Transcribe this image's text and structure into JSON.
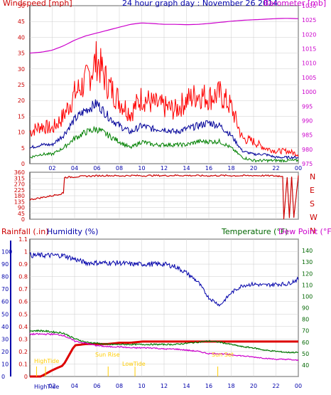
{
  "header": {
    "wind_label": "Windspeed [mph]",
    "title": "24 hour graph day : November 26 2014",
    "baro_label": "Barometer [mb]",
    "rain_label": "Rainfall (.in)",
    "humidity_label": "Humidity (%)",
    "temp_label": "Temperature (°F)",
    "dew_label": "Dew Point (°F)"
  },
  "colors": {
    "wind": "#ff0000",
    "avg_wind": "#000099",
    "wind_low": "#008000",
    "barometer": "#cc00cc",
    "direction": "#cc0000",
    "rain": "#dd0000",
    "humidity": "#0000aa",
    "temperature": "#007700",
    "dewpoint": "#cc00cc",
    "events": "#ffcc00",
    "frame": "#000000",
    "grid": "#cccccc"
  },
  "chart_data": [
    {
      "type": "line",
      "title": "24 hour graph day : November 26 2014",
      "xlabel": "",
      "ylabel": "Windspeed [mph]",
      "ylabel_right": "Barometer [mb]",
      "x_ticks": [
        "02",
        "04",
        "06",
        "08",
        "10",
        "12",
        "14",
        "16",
        "18",
        "20",
        "22",
        "00"
      ],
      "x": [
        0,
        1,
        2,
        3,
        4,
        5,
        6,
        7,
        8,
        9,
        10,
        11,
        12,
        13,
        14,
        15,
        16,
        17,
        18,
        19,
        20,
        21,
        22,
        23,
        24
      ],
      "ylim": [
        0,
        50
      ],
      "y_ticks": [
        0,
        5,
        10,
        15,
        20,
        25,
        30,
        35,
        40,
        45,
        50
      ],
      "ylim_right": [
        975,
        1030
      ],
      "y_ticks_right": [
        975,
        980,
        985,
        990,
        995,
        1000,
        1005,
        1010,
        1015,
        1020,
        1025,
        1030
      ],
      "series": [
        {
          "key": "wind",
          "axis": "left",
          "values": [
            10,
            12,
            11,
            15,
            22,
            26,
            33,
            25,
            20,
            16,
            21,
            19,
            18,
            17,
            20,
            22,
            21,
            22,
            18,
            8,
            7,
            5,
            4,
            4,
            3
          ]
        },
        {
          "key": "avg_wind",
          "axis": "left",
          "values": [
            5,
            6,
            6,
            9,
            14,
            17,
            19,
            15,
            12,
            10,
            12,
            11,
            11,
            10,
            11,
            12,
            13,
            12,
            9,
            4,
            3,
            3,
            2,
            2,
            2
          ]
        },
        {
          "key": "wind_low",
          "axis": "left",
          "values": [
            2,
            3,
            3,
            5,
            8,
            10,
            11,
            9,
            7,
            5,
            7,
            6,
            6,
            6,
            6,
            7,
            7,
            7,
            5,
            2,
            1,
            1,
            1,
            1,
            1
          ]
        },
        {
          "key": "barometer",
          "axis": "right",
          "values": [
            1013.5,
            1013.8,
            1014.5,
            1016,
            1018,
            1019.5,
            1020.5,
            1021.5,
            1022.5,
            1023.5,
            1024,
            1023.8,
            1023.5,
            1023.5,
            1023.4,
            1023.5,
            1023.8,
            1024.2,
            1024.6,
            1024.9,
            1025.1,
            1025.3,
            1025.5,
            1025.6,
            1025.5
          ]
        }
      ]
    },
    {
      "type": "line",
      "xlabel": "",
      "ylabel": "",
      "x": [
        0,
        1,
        2,
        3,
        3.1,
        4,
        5,
        6,
        7,
        8,
        9,
        10,
        11,
        12,
        13,
        14,
        15,
        16,
        17,
        18,
        19,
        20,
        21,
        22,
        22.6,
        22.7,
        23,
        23.2,
        23.4,
        23.6,
        24
      ],
      "ylim": [
        0,
        360
      ],
      "y_ticks": [
        0,
        45,
        90,
        135,
        180,
        225,
        270,
        315,
        360
      ],
      "y_ticks_right": [
        "N",
        "E",
        "S",
        "W",
        "N"
      ],
      "series": [
        {
          "key": "direction",
          "values": [
            150,
            165,
            180,
            200,
            320,
            325,
            330,
            333,
            335,
            332,
            335,
            333,
            335,
            334,
            336,
            335,
            334,
            333,
            335,
            334,
            333,
            335,
            334,
            332,
            330,
            0,
            320,
            10,
            330,
            15,
            335
          ]
        }
      ]
    },
    {
      "type": "line",
      "xlabel": "",
      "ylabel": "Rainfall (.in)",
      "ylabel_secondary": "Humidity (%)",
      "ylabel_right": "Temperature (°F)",
      "ylabel_right_secondary": "Dew Point (°F)",
      "x_ticks": [
        "02",
        "04",
        "06",
        "08",
        "10",
        "12",
        "14",
        "16",
        "18",
        "20",
        "22",
        "00"
      ],
      "x": [
        0,
        1,
        2,
        3,
        4,
        5,
        6,
        7,
        8,
        9,
        10,
        11,
        12,
        13,
        14,
        15,
        16,
        17,
        18,
        19,
        20,
        21,
        22,
        23,
        24
      ],
      "ylim": [
        0,
        1.1
      ],
      "y_ticks": [
        0,
        0.1,
        0.2,
        0.3,
        0.4,
        0.5,
        0.6,
        0.7,
        0.8,
        0.9,
        1,
        1.1
      ],
      "ylim_humidity": [
        0,
        110
      ],
      "y_ticks_humidity": [
        0,
        10,
        20,
        30,
        40,
        50,
        60,
        70,
        80,
        90,
        100
      ],
      "ylim_right": [
        30,
        150
      ],
      "y_ticks_right": [
        40,
        50,
        60,
        70,
        80,
        90,
        100,
        110,
        120,
        130,
        140
      ],
      "series": [
        {
          "key": "rain",
          "axis": "left",
          "values": [
            0,
            0,
            0.05,
            0.09,
            0.25,
            0.26,
            0.26,
            0.26,
            0.27,
            0.27,
            0.28,
            0.28,
            0.28,
            0.28,
            0.28,
            0.28,
            0.28,
            0.28,
            0.28,
            0.28,
            0.28,
            0.28,
            0.28,
            0.28,
            0.28
          ]
        },
        {
          "key": "humidity",
          "axis": "humidity",
          "values": [
            97,
            97,
            97,
            97,
            94,
            91,
            91,
            91,
            91,
            90,
            90,
            90,
            90,
            88,
            83,
            76,
            63,
            57,
            67,
            73,
            74,
            73,
            74,
            74,
            78
          ]
        },
        {
          "key": "temperature",
          "axis": "right",
          "values": [
            70,
            70,
            69,
            68,
            63,
            60,
            59,
            58,
            58,
            58,
            58,
            58,
            58,
            58,
            59,
            60,
            61,
            60,
            58,
            56,
            55,
            53,
            52,
            51,
            51
          ]
        },
        {
          "key": "dewpoint",
          "axis": "right",
          "values": [
            67,
            67,
            67,
            66,
            61,
            59,
            57,
            56,
            56,
            55,
            55,
            55,
            54,
            54,
            53,
            52,
            50,
            50,
            49,
            48,
            47,
            46,
            45,
            45,
            44
          ]
        }
      ],
      "annotations": [
        "HighTide",
        "HighTide",
        "Sun Rise",
        "LowTide",
        "Sun Set"
      ]
    }
  ]
}
